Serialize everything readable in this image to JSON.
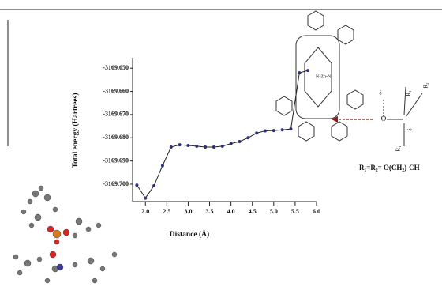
{
  "chart_data": {
    "type": "line",
    "x_label": "Distance (Å)",
    "y_label": "Total energy (Hartrees)",
    "x": [
      1.8,
      2.0,
      2.2,
      2.4,
      2.6,
      2.8,
      3.0,
      3.2,
      3.4,
      3.6,
      3.8,
      4.0,
      4.2,
      4.4,
      4.6,
      4.8,
      5.0,
      5.2,
      5.4,
      5.6,
      5.8
    ],
    "series": [
      {
        "color": "#2a2f7a",
        "values": [
          -3169.7004,
          -3169.706,
          -3169.7007,
          -3169.692,
          -3169.684,
          -3169.683,
          -3169.6833,
          -3169.6836,
          -3169.684,
          -3169.684,
          -3169.6836,
          -3169.6825,
          -3169.6816,
          -3169.68,
          -3169.678,
          -3169.677,
          -3169.6769,
          -3169.6766,
          -3169.6762,
          -3169.652,
          -3169.651
        ]
      }
    ],
    "xlim": [
      1.7,
      6.0
    ],
    "ylim": [
      -3169.7075,
      -3169.6455
    ],
    "xticks": [
      {
        "value": 2.0,
        "label": "2.0"
      },
      2.5,
      {
        "value": 3.0,
        "label": "3.0"
      },
      3.5,
      {
        "value": 4.0,
        "label": "4.0"
      },
      4.5,
      {
        "value": 5.0,
        "label": "5.0"
      },
      5.5,
      {
        "value": 6.0,
        "label": "6.0"
      }
    ],
    "yticks": [
      {
        "value": -3169.65,
        "label": "-3169.650"
      },
      {
        "value": -3169.66,
        "label": "-3169.660"
      },
      {
        "value": -3169.67,
        "label": "-3169.670"
      },
      {
        "value": -3169.68,
        "label": "-3169.680"
      },
      {
        "value": -3169.69,
        "label": "-3169.690"
      },
      {
        "value": -3169.7,
        "label": "-3169.700"
      }
    ],
    "annotations": [
      "R₁=R₂= O(CH₂)-CH",
      "δ−",
      "δ+",
      "O",
      "R₁",
      "R₂",
      "R₁"
    ]
  }
}
